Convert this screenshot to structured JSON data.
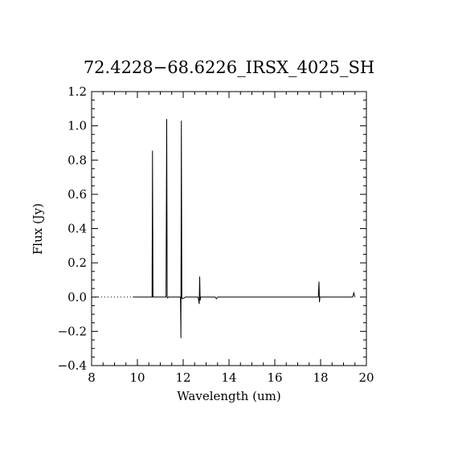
{
  "chart_data": {
    "type": "line",
    "title": "72.4228−68.6226_IRSX_4025_SH",
    "xlabel": "Wavelength (um)",
    "ylabel": "Flux (Jy)",
    "xlim": [
      8,
      20
    ],
    "ylim": [
      -0.4,
      1.2
    ],
    "x_ticks": [
      8,
      10,
      12,
      14,
      16,
      18,
      20
    ],
    "x_tick_labels": [
      "8",
      "10",
      "12",
      "14",
      "16",
      "18",
      "20"
    ],
    "y_ticks": [
      -0.4,
      -0.2,
      0.0,
      0.2,
      0.4,
      0.6,
      0.8,
      1.0,
      1.2
    ],
    "y_tick_labels": [
      "−0.4",
      "−0.2",
      "0.0",
      "0.2",
      "0.4",
      "0.6",
      "0.8",
      "1.0",
      "1.2"
    ],
    "grid": false,
    "legend": "none",
    "color": "#000000",
    "series": [
      {
        "style": "dotted",
        "x": [
          8.0,
          9.8
        ],
        "y": [
          0.0,
          0.0
        ]
      },
      {
        "style": "solid",
        "x": [
          9.8,
          10.6,
          10.64,
          10.66,
          10.68,
          10.7,
          11.25,
          11.28,
          11.3,
          11.32,
          11.35,
          11.88,
          11.9,
          11.92,
          11.94,
          11.96,
          12.1,
          12.65,
          12.7,
          12.72,
          12.74,
          12.76,
          13.4,
          13.45,
          13.5,
          15.5,
          17.9,
          17.93,
          17.95,
          17.97,
          18.0,
          19.3,
          19.4,
          19.45,
          19.5
        ],
        "y": [
          0.0,
          0.0,
          0.0,
          0.855,
          0.0,
          0.0,
          0.0,
          1.04,
          0.0,
          -0.005,
          0.0,
          0.0,
          -0.24,
          1.03,
          0.0,
          -0.01,
          0.0,
          0.0,
          -0.04,
          0.12,
          -0.02,
          0.0,
          0.0,
          -0.01,
          0.0,
          0.0,
          0.0,
          0.09,
          -0.03,
          0.0,
          0.0,
          0.0,
          0.0,
          0.025,
          0.0
        ]
      }
    ]
  }
}
